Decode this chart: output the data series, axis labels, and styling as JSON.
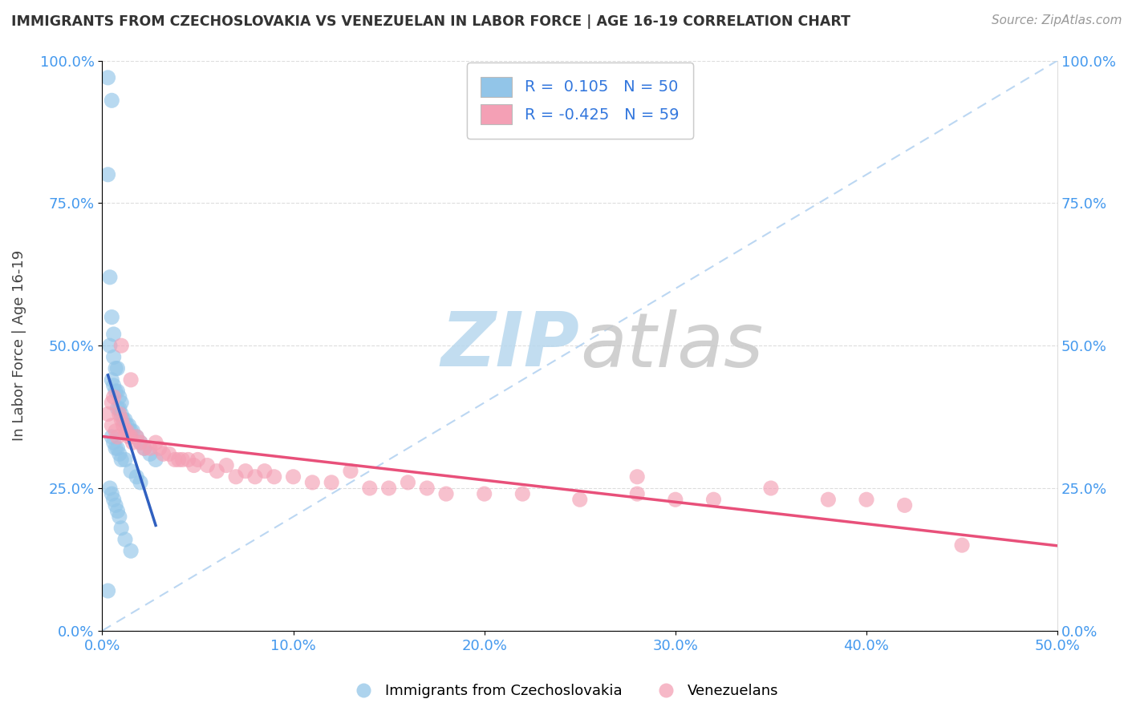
{
  "title": "IMMIGRANTS FROM CZECHOSLOVAKIA VS VENEZUELAN IN LABOR FORCE | AGE 16-19 CORRELATION CHART",
  "source": "Source: ZipAtlas.com",
  "ylabel": "In Labor Force | Age 16-19",
  "xlim": [
    0.0,
    0.5
  ],
  "ylim": [
    0.0,
    1.0
  ],
  "xtick_vals": [
    0.0,
    0.1,
    0.2,
    0.3,
    0.4,
    0.5
  ],
  "ytick_vals": [
    0.0,
    0.25,
    0.5,
    0.75,
    1.0
  ],
  "r1": 0.105,
  "n1": 50,
  "r2": -0.425,
  "n2": 59,
  "blue_color": "#92C5E8",
  "pink_color": "#F4A0B5",
  "blue_line_color": "#3060C0",
  "pink_line_color": "#E8507A",
  "diag_color": "#B0D0F0",
  "watermark_color": "#D5EAF5",
  "blue_x": [
    0.003,
    0.005,
    0.003,
    0.004,
    0.005,
    0.006,
    0.004,
    0.006,
    0.007,
    0.008,
    0.005,
    0.006,
    0.007,
    0.008,
    0.009,
    0.01,
    0.008,
    0.009,
    0.01,
    0.011,
    0.012,
    0.013,
    0.014,
    0.015,
    0.016,
    0.018,
    0.02,
    0.022,
    0.025,
    0.028,
    0.005,
    0.006,
    0.007,
    0.008,
    0.009,
    0.01,
    0.012,
    0.015,
    0.018,
    0.02,
    0.004,
    0.005,
    0.006,
    0.007,
    0.008,
    0.009,
    0.01,
    0.012,
    0.015,
    0.003
  ],
  "blue_y": [
    0.97,
    0.93,
    0.8,
    0.62,
    0.55,
    0.52,
    0.5,
    0.48,
    0.46,
    0.46,
    0.44,
    0.43,
    0.42,
    0.42,
    0.41,
    0.4,
    0.39,
    0.39,
    0.38,
    0.37,
    0.37,
    0.36,
    0.36,
    0.35,
    0.35,
    0.34,
    0.33,
    0.32,
    0.31,
    0.3,
    0.34,
    0.33,
    0.32,
    0.32,
    0.31,
    0.3,
    0.3,
    0.28,
    0.27,
    0.26,
    0.25,
    0.24,
    0.23,
    0.22,
    0.21,
    0.2,
    0.18,
    0.16,
    0.14,
    0.07
  ],
  "pink_x": [
    0.003,
    0.005,
    0.006,
    0.007,
    0.008,
    0.009,
    0.01,
    0.011,
    0.012,
    0.013,
    0.014,
    0.015,
    0.016,
    0.018,
    0.02,
    0.022,
    0.025,
    0.028,
    0.03,
    0.032,
    0.035,
    0.038,
    0.04,
    0.042,
    0.045,
    0.048,
    0.05,
    0.055,
    0.06,
    0.065,
    0.07,
    0.075,
    0.08,
    0.085,
    0.09,
    0.1,
    0.11,
    0.12,
    0.13,
    0.14,
    0.15,
    0.16,
    0.17,
    0.18,
    0.2,
    0.22,
    0.25,
    0.28,
    0.3,
    0.32,
    0.35,
    0.38,
    0.4,
    0.42,
    0.45,
    0.005,
    0.01,
    0.015,
    0.28
  ],
  "pink_y": [
    0.38,
    0.36,
    0.41,
    0.35,
    0.34,
    0.38,
    0.37,
    0.36,
    0.35,
    0.35,
    0.34,
    0.34,
    0.33,
    0.34,
    0.33,
    0.32,
    0.32,
    0.33,
    0.32,
    0.31,
    0.31,
    0.3,
    0.3,
    0.3,
    0.3,
    0.29,
    0.3,
    0.29,
    0.28,
    0.29,
    0.27,
    0.28,
    0.27,
    0.28,
    0.27,
    0.27,
    0.26,
    0.26,
    0.28,
    0.25,
    0.25,
    0.26,
    0.25,
    0.24,
    0.24,
    0.24,
    0.23,
    0.24,
    0.23,
    0.23,
    0.25,
    0.23,
    0.23,
    0.22,
    0.15,
    0.4,
    0.5,
    0.44,
    0.27
  ]
}
